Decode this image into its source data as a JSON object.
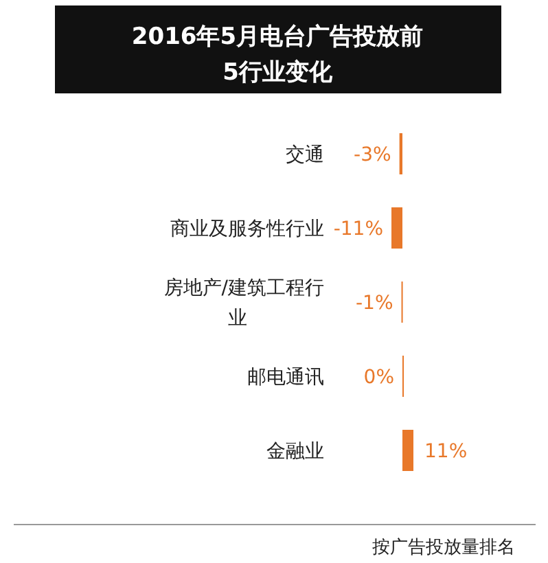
{
  "chart_data": {
    "type": "bar",
    "orientation": "horizontal",
    "title": "2016年5月电台广告投放前5行业变化",
    "categories": [
      "交通",
      "商业及服务性行业",
      "房地产/建筑工程行业",
      "邮电通讯",
      "金融业"
    ],
    "values": [
      -3,
      -11,
      -1,
      0,
      11
    ],
    "value_labels": [
      "-3%",
      "-11%",
      "-1%",
      "0%",
      "11%"
    ],
    "color": "#e8782a",
    "annotations": [
      "按广告投放量排名"
    ]
  }
}
